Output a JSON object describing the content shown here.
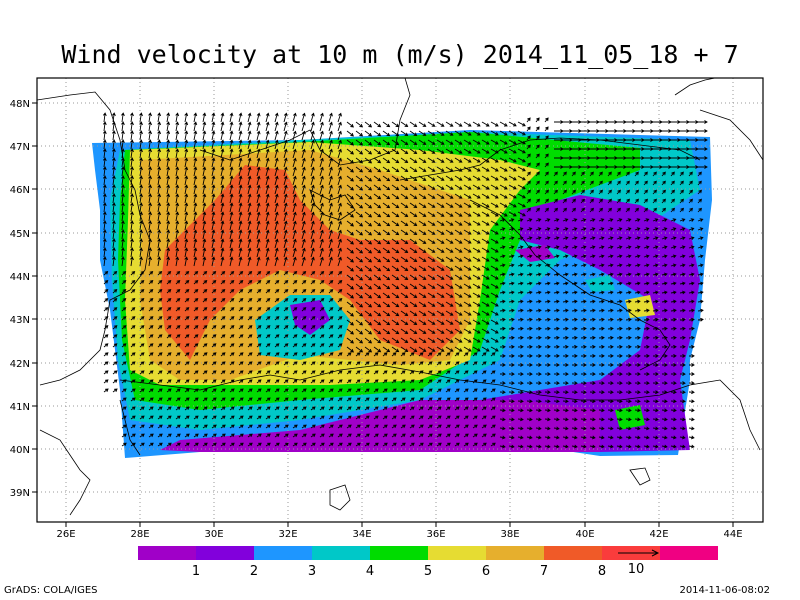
{
  "title": "Wind velocity at 10 m (m/s) 2014_11_05_18 + 7",
  "footer": {
    "left": "GrADS: COLA/IGES",
    "right": "2014-11-06-08:02"
  },
  "axes": {
    "lon_ticks": [
      "26E",
      "28E",
      "30E",
      "32E",
      "34E",
      "36E",
      "38E",
      "40E",
      "42E",
      "44E"
    ],
    "lat_ticks": [
      "48N",
      "47N",
      "46N",
      "45N",
      "44N",
      "43N",
      "42N",
      "41N",
      "40N",
      "39N"
    ],
    "lon_range": [
      25,
      45
    ],
    "lat_range": [
      38.4,
      48.4
    ],
    "grid": "dotted"
  },
  "colorbar": {
    "colors": [
      "#a000c8",
      "#8200dc",
      "#1e96ff",
      "#00c8c8",
      "#00dc00",
      "#e6dc32",
      "#e6af2d",
      "#f05a28",
      "#fa3c3c",
      "#f00082"
    ],
    "labels": [
      "1",
      "2",
      "3",
      "4",
      "5",
      "6",
      "7",
      "8"
    ],
    "reference_vector_label": "10"
  },
  "legend_ref_units": "m/s"
}
